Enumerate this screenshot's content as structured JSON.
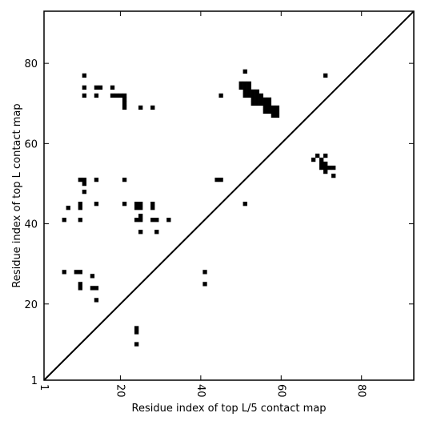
{
  "chart_data": {
    "type": "heatmap",
    "title": "",
    "xlabel": "Residue index of top L/5 contact map",
    "ylabel": "Residue index of top L contact map",
    "xlim": [
      1,
      93
    ],
    "ylim": [
      1,
      93
    ],
    "xticks": [
      1,
      20,
      40,
      60,
      80
    ],
    "yticks": [
      1,
      20,
      40,
      60,
      80
    ],
    "xtick_rotation": -90,
    "grid": false,
    "diagonal_line": true,
    "colors": {
      "contact": "#000000",
      "background": "#ffffff",
      "axes": "#000000"
    },
    "contacts": [
      [
        11,
        77
      ],
      [
        11,
        74
      ],
      [
        11,
        72
      ],
      [
        14,
        74
      ],
      [
        15,
        74
      ],
      [
        14,
        72
      ],
      [
        18,
        74
      ],
      [
        18,
        72
      ],
      [
        19,
        72
      ],
      [
        20,
        72
      ],
      [
        21,
        72
      ],
      [
        21,
        71
      ],
      [
        21,
        70
      ],
      [
        21,
        69
      ],
      [
        25,
        69
      ],
      [
        28,
        69
      ],
      [
        10,
        51
      ],
      [
        11,
        51
      ],
      [
        11,
        50
      ],
      [
        14,
        51
      ],
      [
        21,
        51
      ],
      [
        11,
        48
      ],
      [
        7,
        44
      ],
      [
        10,
        45
      ],
      [
        10,
        44
      ],
      [
        14,
        45
      ],
      [
        21,
        45
      ],
      [
        24,
        45
      ],
      [
        25,
        45
      ],
      [
        24,
        44
      ],
      [
        25,
        44
      ],
      [
        28,
        45
      ],
      [
        28,
        44
      ],
      [
        25,
        42
      ],
      [
        24,
        41
      ],
      [
        25,
        41
      ],
      [
        28,
        41
      ],
      [
        29,
        41
      ],
      [
        32,
        41
      ],
      [
        6,
        41
      ],
      [
        10,
        41
      ],
      [
        25,
        38
      ],
      [
        29,
        38
      ],
      [
        6,
        28
      ],
      [
        9,
        28
      ],
      [
        10,
        28
      ],
      [
        13,
        27
      ],
      [
        10,
        25
      ],
      [
        10,
        24
      ],
      [
        13,
        24
      ],
      [
        14,
        24
      ],
      [
        14,
        21
      ],
      [
        24,
        14
      ],
      [
        24,
        13
      ],
      [
        24,
        10
      ],
      [
        41,
        28
      ],
      [
        41,
        25
      ],
      [
        44,
        51
      ],
      [
        45,
        51
      ],
      [
        45,
        72
      ],
      [
        51,
        45
      ],
      [
        51,
        78
      ],
      [
        71,
        77
      ],
      [
        50,
        75
      ],
      [
        51,
        75
      ],
      [
        52,
        75
      ],
      [
        50,
        74
      ],
      [
        51,
        74
      ],
      [
        52,
        74
      ],
      [
        51,
        73
      ],
      [
        52,
        73
      ],
      [
        53,
        73
      ],
      [
        54,
        73
      ],
      [
        51,
        72
      ],
      [
        52,
        72
      ],
      [
        53,
        72
      ],
      [
        54,
        72
      ],
      [
        55,
        72
      ],
      [
        53,
        71
      ],
      [
        54,
        71
      ],
      [
        55,
        71
      ],
      [
        56,
        71
      ],
      [
        57,
        71
      ],
      [
        53,
        70
      ],
      [
        54,
        70
      ],
      [
        55,
        70
      ],
      [
        56,
        70
      ],
      [
        57,
        70
      ],
      [
        56,
        69
      ],
      [
        57,
        69
      ],
      [
        58,
        69
      ],
      [
        59,
        69
      ],
      [
        56,
        68
      ],
      [
        57,
        68
      ],
      [
        58,
        68
      ],
      [
        59,
        68
      ],
      [
        58,
        67
      ],
      [
        59,
        67
      ],
      [
        69,
        57
      ],
      [
        71,
        57
      ],
      [
        68,
        56
      ],
      [
        70,
        56
      ],
      [
        70,
        55
      ],
      [
        71,
        55
      ],
      [
        70,
        54
      ],
      [
        71,
        54
      ],
      [
        72,
        54
      ],
      [
        73,
        54
      ],
      [
        71,
        53
      ],
      [
        73,
        52
      ]
    ]
  }
}
